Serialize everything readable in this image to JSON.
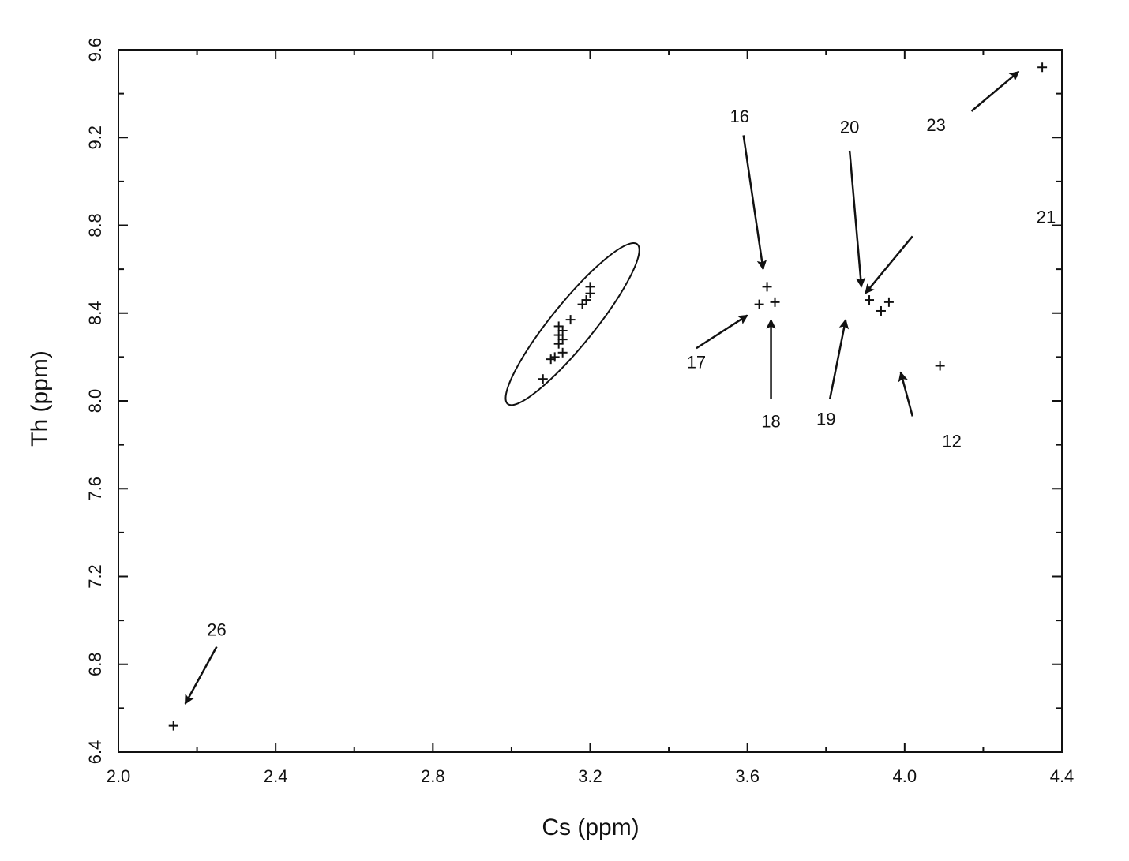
{
  "chart_data": {
    "type": "scatter",
    "title": "",
    "xlabel": "Cs (ppm)",
    "ylabel": "Th (ppm)",
    "xlim": [
      2.0,
      4.4
    ],
    "ylim": [
      6.4,
      9.6
    ],
    "grid": false,
    "legend": "none",
    "marker": "+",
    "x_ticks": [
      {
        "value": 2.0,
        "label": "2.0"
      },
      {
        "value": 2.4,
        "label": "2.4"
      },
      {
        "value": 2.8,
        "label": "2.8"
      },
      {
        "value": 3.2,
        "label": "3.2"
      },
      {
        "value": 3.6,
        "label": "3.6"
      },
      {
        "value": 4.0,
        "label": "4.0"
      },
      {
        "value": 4.4,
        "label": "4.4"
      }
    ],
    "y_ticks": [
      {
        "value": 6.4,
        "label": "6.4"
      },
      {
        "value": 6.8,
        "label": "6.8"
      },
      {
        "value": 7.2,
        "label": "7.2"
      },
      {
        "value": 7.6,
        "label": "7.6"
      },
      {
        "value": 8.0,
        "label": "8.0"
      },
      {
        "value": 8.4,
        "label": "8.4"
      },
      {
        "value": 8.8,
        "label": "8.8"
      },
      {
        "value": 9.2,
        "label": "9.2"
      },
      {
        "value": 9.6,
        "label": "9.6"
      }
    ],
    "points": [
      {
        "x": 2.14,
        "y": 6.52
      },
      {
        "x": 3.08,
        "y": 8.1
      },
      {
        "x": 3.1,
        "y": 8.19
      },
      {
        "x": 3.11,
        "y": 8.2
      },
      {
        "x": 3.12,
        "y": 8.26
      },
      {
        "x": 3.12,
        "y": 8.3
      },
      {
        "x": 3.12,
        "y": 8.34
      },
      {
        "x": 3.13,
        "y": 8.22
      },
      {
        "x": 3.13,
        "y": 8.28
      },
      {
        "x": 3.13,
        "y": 8.32
      },
      {
        "x": 3.15,
        "y": 8.37
      },
      {
        "x": 3.18,
        "y": 8.44
      },
      {
        "x": 3.19,
        "y": 8.46
      },
      {
        "x": 3.2,
        "y": 8.49
      },
      {
        "x": 3.2,
        "y": 8.52
      },
      {
        "x": 3.63,
        "y": 8.44
      },
      {
        "x": 3.65,
        "y": 8.52
      },
      {
        "x": 3.67,
        "y": 8.45
      },
      {
        "x": 3.91,
        "y": 8.46
      },
      {
        "x": 3.94,
        "y": 8.41
      },
      {
        "x": 3.96,
        "y": 8.45
      },
      {
        "x": 4.09,
        "y": 8.16
      },
      {
        "x": 4.35,
        "y": 9.52
      }
    ],
    "group_ellipse": {
      "cx": 3.155,
      "cy": 8.35,
      "width_x": 0.22,
      "height_y": 0.85,
      "tilt_deg": 51
    },
    "annotations": [
      {
        "label": "26",
        "text_at": [
          2.25,
          6.93
        ],
        "tail": [
          2.25,
          6.88
        ],
        "tip": [
          2.17,
          6.62
        ]
      },
      {
        "label": "16",
        "text_at": [
          3.58,
          9.27
        ],
        "tail": [
          3.59,
          9.21
        ],
        "tip": [
          3.64,
          8.6
        ]
      },
      {
        "label": "17",
        "text_at": [
          3.47,
          8.15
        ],
        "tail": [
          3.47,
          8.24
        ],
        "tip": [
          3.6,
          8.39
        ]
      },
      {
        "label": "18",
        "text_at": [
          3.66,
          7.88
        ],
        "tail": [
          3.66,
          8.01
        ],
        "tip": [
          3.66,
          8.37
        ]
      },
      {
        "label": "20",
        "text_at": [
          3.86,
          9.22
        ],
        "tail": [
          3.86,
          9.14
        ],
        "tip": [
          3.89,
          8.52
        ]
      },
      {
        "label": "21",
        "text_at": [
          4.42,
          8.81
        ],
        "tail": [
          4.02,
          8.75
        ],
        "tip": [
          3.9,
          8.49
        ]
      },
      {
        "label": "19",
        "text_at": [
          3.8,
          7.89
        ],
        "tail": [
          3.81,
          8.01
        ],
        "tip": [
          3.85,
          8.37
        ]
      },
      {
        "label": "12",
        "text_at": [
          4.12,
          7.79
        ],
        "tail": [
          4.02,
          7.93
        ],
        "tip": [
          3.99,
          8.13
        ]
      },
      {
        "label": "23",
        "text_at": [
          4.08,
          9.23
        ],
        "tail": [
          4.17,
          9.32
        ],
        "tip": [
          4.29,
          9.5
        ]
      }
    ]
  }
}
